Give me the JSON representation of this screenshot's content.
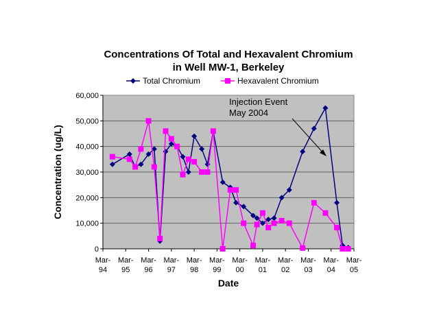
{
  "chart_data": {
    "type": "line",
    "title": [
      "Concentrations Of Total and Hexavalent Chromium",
      "in Well MW-1, Berkeley"
    ],
    "xlabel": "Date",
    "ylabel": "Concentration (ug/L)",
    "ylim": [
      0,
      60000
    ],
    "yticks": [
      "0",
      "10,000",
      "20,000",
      "30,000",
      "40,000",
      "50,000",
      "60,000"
    ],
    "xticks": [
      [
        "Mar-",
        "94"
      ],
      [
        "Mar-",
        "95"
      ],
      [
        "Mar-",
        "96"
      ],
      [
        "Mar-",
        "97"
      ],
      [
        "Mar-",
        "98"
      ],
      [
        "Mar-",
        "99"
      ],
      [
        "Mar-",
        "00"
      ],
      [
        "Mar-",
        "01"
      ],
      [
        "Mar-",
        "02"
      ],
      [
        "Mar-",
        "03"
      ],
      [
        "Mar-",
        "04"
      ],
      [
        "Mar-",
        "05"
      ]
    ],
    "xlim": [
      "1994-03",
      "2005-03"
    ],
    "grid": true,
    "legend_placement": "top",
    "background": "#C0C0C0",
    "annotation": {
      "text": [
        "Injection Event",
        "May 2004"
      ],
      "arrow": true
    },
    "x": [
      "1994-08",
      "1995-05",
      "1995-08",
      "1995-11",
      "1996-03",
      "1996-06",
      "1996-09",
      "1996-12",
      "1997-03",
      "1997-06",
      "1997-09",
      "1997-12",
      "1998-03",
      "1998-07",
      "1998-10",
      "1999-01",
      "1999-06",
      "1999-10",
      "2000-01",
      "2000-05",
      "2000-10",
      "2000-12",
      "2001-03",
      "2001-06",
      "2001-09",
      "2002-01",
      "2002-05",
      "2002-12",
      "2003-06",
      "2003-12",
      "2004-06",
      "2004-09",
      "2004-12"
    ],
    "series": [
      {
        "name": "Total Chromium",
        "color": "#000080",
        "marker": "diamond",
        "values": [
          33000,
          37000,
          32000,
          33000,
          37000,
          39000,
          3000,
          38000,
          41000,
          40000,
          36000,
          30000,
          44000,
          39000,
          33000,
          46000,
          26000,
          24000,
          18000,
          16500,
          13000,
          12000,
          10000,
          11500,
          12000,
          20000,
          23000,
          38000,
          47000,
          55000,
          18000,
          1300,
          500
        ]
      },
      {
        "name": "Hexavalent Chromium",
        "color": "#FF00FF",
        "marker": "square",
        "values": [
          36000,
          35000,
          32000,
          39000,
          50000,
          32000,
          4000,
          46000,
          43000,
          40000,
          29000,
          35000,
          34000,
          30000,
          30000,
          46000,
          0,
          23000,
          23000,
          10000,
          1300,
          9500,
          14000,
          8300,
          10000,
          11000,
          10000,
          300,
          18000,
          14000,
          8300,
          0,
          0
        ]
      }
    ]
  }
}
